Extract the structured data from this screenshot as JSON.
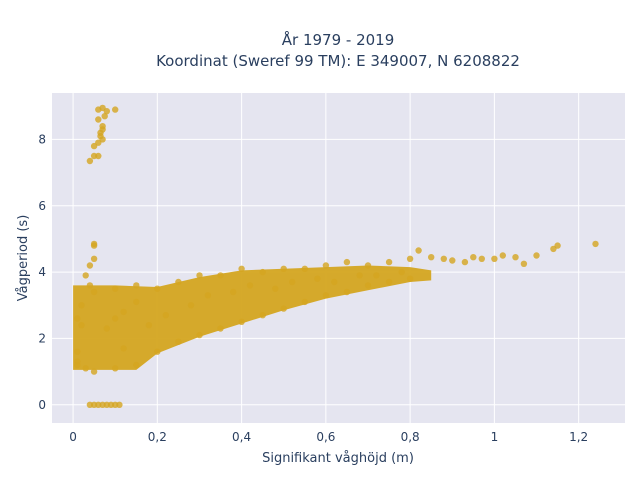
{
  "chart_data": {
    "type": "scatter",
    "title": [
      "År 1979 - 2019",
      "Koordinat (Sweref 99 TM): E 349007, N 6208822"
    ],
    "xlabel": "Signifikant våghöjd (m)",
    "ylabel": "Vågperiod (s)",
    "xlim": [
      -0.05,
      1.31
    ],
    "ylim": [
      -0.55,
      9.4
    ],
    "xticks": [
      0,
      0.2,
      0.4,
      0.6,
      0.8,
      1.0,
      1.2
    ],
    "xtick_labels": [
      "0",
      "0,2",
      "0,4",
      "0,6",
      "0,8",
      "1",
      "1,2"
    ],
    "yticks": [
      0,
      2,
      4,
      6,
      8
    ],
    "ytick_labels": [
      "0",
      "2",
      "4",
      "6",
      "8"
    ],
    "grid": true,
    "legend": false,
    "marker_color": "#d4a520",
    "plot_background": "#e5e5f0",
    "series": [
      {
        "points": [
          [
            0.06,
            8.9
          ],
          [
            0.07,
            8.95
          ],
          [
            0.08,
            8.85
          ],
          [
            0.1,
            8.9
          ],
          [
            0.06,
            8.6
          ],
          [
            0.07,
            8.4
          ],
          [
            0.065,
            8.2
          ],
          [
            0.07,
            8.0
          ],
          [
            0.06,
            7.9
          ],
          [
            0.05,
            7.8
          ],
          [
            0.04,
            7.35
          ],
          [
            0.05,
            7.5
          ],
          [
            0.06,
            7.5
          ],
          [
            0.07,
            8.3
          ],
          [
            0.065,
            8.1
          ],
          [
            0.075,
            8.7
          ],
          [
            0.05,
            4.85
          ],
          [
            0.05,
            4.8
          ],
          [
            0.04,
            4.2
          ],
          [
            0.05,
            4.4
          ],
          [
            0.03,
            3.9
          ],
          [
            0.04,
            3.6
          ],
          [
            0.02,
            3.0
          ],
          [
            0.01,
            2.6
          ],
          [
            0.02,
            2.4
          ],
          [
            0.01,
            1.6
          ],
          [
            0.01,
            1.3
          ],
          [
            0.01,
            1.2
          ],
          [
            0.03,
            1.1
          ],
          [
            0.05,
            0.0
          ],
          [
            0.06,
            0.0
          ],
          [
            0.07,
            0.0
          ],
          [
            0.08,
            0.0
          ],
          [
            0.09,
            0.0
          ],
          [
            0.1,
            0.0
          ],
          [
            0.11,
            0.0
          ],
          [
            0.04,
            0.0
          ],
          [
            0.05,
            1.0
          ],
          [
            0.1,
            1.1
          ],
          [
            0.15,
            1.2
          ],
          [
            0.12,
            1.7
          ],
          [
            0.2,
            1.6
          ],
          [
            0.25,
            1.9
          ],
          [
            0.3,
            2.1
          ],
          [
            0.35,
            2.3
          ],
          [
            0.4,
            2.5
          ],
          [
            0.45,
            2.7
          ],
          [
            0.5,
            2.9
          ],
          [
            0.55,
            3.1
          ],
          [
            0.6,
            3.3
          ],
          [
            0.65,
            3.4
          ],
          [
            0.7,
            3.6
          ],
          [
            0.75,
            3.7
          ],
          [
            0.8,
            3.8
          ],
          [
            0.05,
            3.4
          ],
          [
            0.1,
            3.5
          ],
          [
            0.15,
            3.6
          ],
          [
            0.2,
            3.5
          ],
          [
            0.25,
            3.7
          ],
          [
            0.3,
            3.9
          ],
          [
            0.35,
            3.9
          ],
          [
            0.4,
            4.1
          ],
          [
            0.45,
            4.0
          ],
          [
            0.5,
            4.1
          ],
          [
            0.55,
            4.1
          ],
          [
            0.6,
            4.2
          ],
          [
            0.65,
            4.3
          ],
          [
            0.7,
            4.2
          ],
          [
            0.75,
            4.3
          ],
          [
            0.8,
            4.4
          ],
          [
            0.82,
            4.65
          ],
          [
            0.85,
            4.45
          ],
          [
            0.88,
            4.4
          ],
          [
            0.9,
            4.35
          ],
          [
            0.93,
            4.3
          ],
          [
            0.95,
            4.45
          ],
          [
            0.97,
            4.4
          ],
          [
            1.0,
            4.4
          ],
          [
            1.02,
            4.5
          ],
          [
            1.05,
            4.45
          ],
          [
            1.07,
            4.25
          ],
          [
            1.1,
            4.5
          ],
          [
            1.14,
            4.7
          ],
          [
            1.15,
            4.8
          ],
          [
            1.24,
            4.85
          ],
          [
            0.08,
            2.3
          ],
          [
            0.1,
            2.6
          ],
          [
            0.12,
            2.8
          ],
          [
            0.15,
            3.1
          ],
          [
            0.18,
            2.4
          ],
          [
            0.22,
            2.7
          ],
          [
            0.28,
            3.0
          ],
          [
            0.32,
            3.3
          ],
          [
            0.38,
            3.4
          ],
          [
            0.42,
            3.6
          ],
          [
            0.48,
            3.5
          ],
          [
            0.52,
            3.7
          ],
          [
            0.58,
            3.8
          ],
          [
            0.62,
            3.7
          ],
          [
            0.68,
            3.9
          ],
          [
            0.72,
            3.9
          ],
          [
            0.78,
            4.0
          ]
        ]
      }
    ]
  }
}
